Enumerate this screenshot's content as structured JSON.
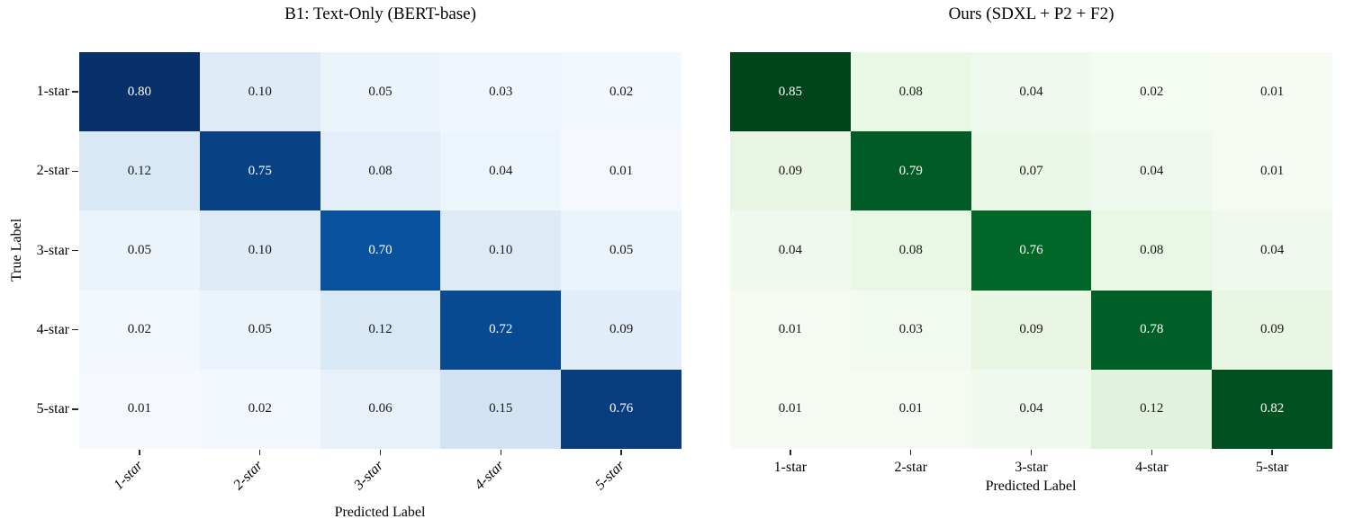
{
  "chart_data": [
    {
      "type": "heatmap",
      "title": "B1: Text-Only (BERT-base)",
      "xlabel": "Predicted Label",
      "ylabel": "True Label",
      "x_tick_labels": [
        "1-star",
        "2-star",
        "3-star",
        "4-star",
        "5-star"
      ],
      "y_tick_labels": [
        "1-star",
        "2-star",
        "3-star",
        "4-star",
        "5-star"
      ],
      "values": [
        [
          0.8,
          0.1,
          0.05,
          0.03,
          0.02
        ],
        [
          0.12,
          0.75,
          0.08,
          0.04,
          0.01
        ],
        [
          0.05,
          0.1,
          0.7,
          0.1,
          0.05
        ],
        [
          0.02,
          0.05,
          0.12,
          0.72,
          0.09
        ],
        [
          0.01,
          0.02,
          0.06,
          0.15,
          0.76
        ]
      ],
      "colormap": "Blues",
      "vmin": 0,
      "vmax": 0.8,
      "x_tick_rotation_deg": 45,
      "x_tick_italic": true,
      "show_y_axis": true,
      "legend": "none",
      "grid": "off"
    },
    {
      "type": "heatmap",
      "title": "Ours (SDXL + P2 + F2)",
      "xlabel": "Predicted Label",
      "ylabel": "",
      "x_tick_labels": [
        "1-star",
        "2-star",
        "3-star",
        "4-star",
        "5-star"
      ],
      "y_tick_labels": [],
      "values": [
        [
          0.85,
          0.08,
          0.04,
          0.02,
          0.01
        ],
        [
          0.09,
          0.79,
          0.07,
          0.04,
          0.01
        ],
        [
          0.04,
          0.08,
          0.76,
          0.08,
          0.04
        ],
        [
          0.01,
          0.03,
          0.09,
          0.78,
          0.09
        ],
        [
          0.01,
          0.01,
          0.04,
          0.12,
          0.82
        ]
      ],
      "colormap": "Greens",
      "vmin": 0,
      "vmax": 0.85,
      "x_tick_rotation_deg": 0,
      "x_tick_italic": false,
      "show_y_axis": false,
      "legend": "none",
      "grid": "off"
    }
  ],
  "colors": {
    "background": "#ffffff",
    "title_text": "#000000",
    "axis_text": "#000000",
    "tick_mark": "#262626",
    "annotation_on_dark": "#ffffff",
    "annotation_on_light": "#1a1a1a",
    "colormap_anchors": {
      "Blues": [
        "#f7fbff",
        "#deebf7",
        "#c6dbef",
        "#9ecae1",
        "#6baed6",
        "#4292c6",
        "#2171b5",
        "#08519c",
        "#08306b"
      ],
      "Greens": [
        "#f7fcf5",
        "#e5f5e0",
        "#c7e9c0",
        "#a1d99b",
        "#74c476",
        "#41ab5d",
        "#238b45",
        "#006d2c",
        "#00441b"
      ]
    }
  }
}
